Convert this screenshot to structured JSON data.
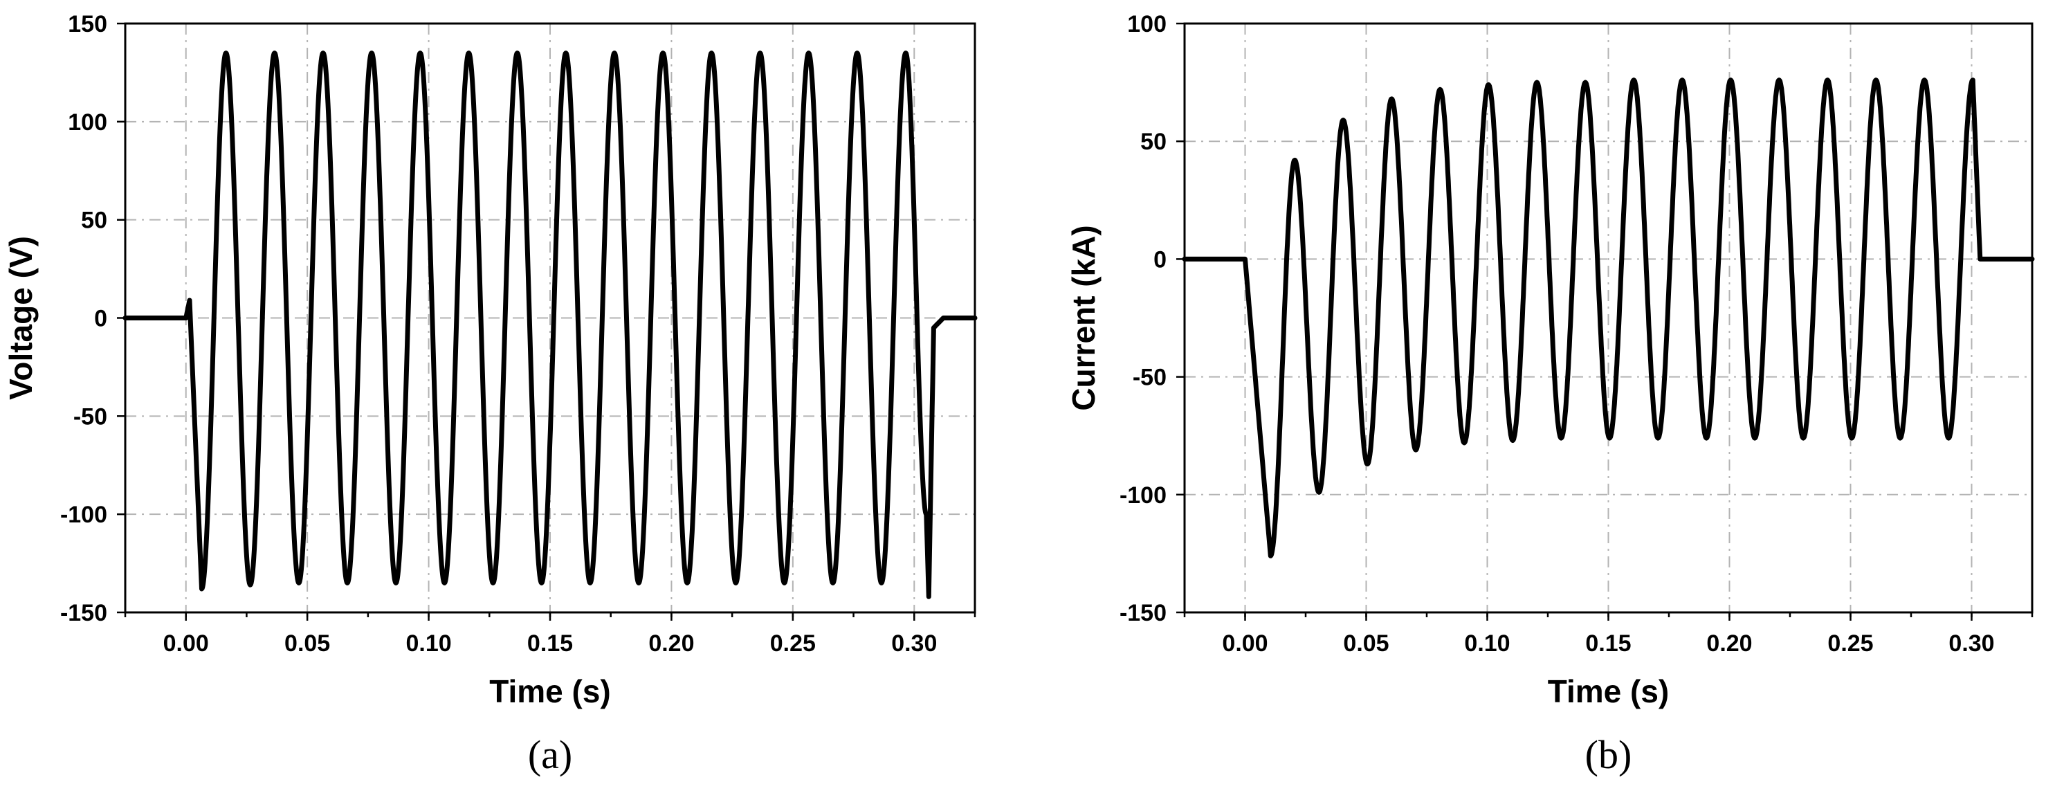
{
  "chart_data": [
    {
      "type": "line",
      "panel": "(a)",
      "xlabel": "Time (s)",
      "ylabel": "Voltage (V)",
      "xlim": [
        -0.025,
        0.325
      ],
      "ylim": [
        -150,
        150
      ],
      "xticks": [
        "0.00",
        "0.05",
        "0.10",
        "0.15",
        "0.20",
        "0.25",
        "0.30"
      ],
      "yticks": [
        "150",
        "100",
        "50",
        "0",
        "-50",
        "-100",
        "-150"
      ],
      "xtick_values": [
        0,
        0.05,
        0.1,
        0.15,
        0.2,
        0.25,
        0.3
      ],
      "ytick_values": [
        150,
        100,
        50,
        0,
        -50,
        -100,
        -150
      ],
      "grid": true,
      "series": [
        {
          "description": "sinusoidal voltage, 50 Hz, amplitude approx. 135 V, energized from t = 0.0015 s to t = 0.305 s",
          "x": [
            -0.025,
            0.0,
            0.0015,
            0.0065,
            0.0165,
            0.0265,
            0.0365,
            0.0465,
            0.0565,
            0.0665,
            0.0765,
            0.0865,
            0.0965,
            0.1065,
            0.1165,
            0.1265,
            0.1365,
            0.1465,
            0.1565,
            0.1665,
            0.1765,
            0.1865,
            0.1965,
            0.2065,
            0.2165,
            0.2265,
            0.2365,
            0.2465,
            0.2565,
            0.2665,
            0.2765,
            0.2865,
            0.2965,
            0.305,
            0.306,
            0.308,
            0.312,
            0.325
          ],
          "y": [
            0,
            0,
            9,
            -138,
            135,
            -136,
            135,
            -135,
            135,
            -135,
            135,
            -135,
            135,
            -135,
            135,
            -135,
            135,
            -135,
            135,
            -135,
            135,
            -135,
            135,
            -135,
            135,
            -135,
            135,
            -135,
            135,
            -135,
            135,
            -135,
            135,
            -100,
            -142,
            -5,
            0,
            0
          ]
        }
      ]
    },
    {
      "type": "line",
      "panel": "(b)",
      "xlabel": "Time (s)",
      "ylabel": "Current (kA)",
      "xlim": [
        -0.025,
        0.325
      ],
      "ylim": [
        -150,
        100
      ],
      "xticks": [
        "0.00",
        "0.05",
        "0.10",
        "0.15",
        "0.20",
        "0.25",
        "0.30"
      ],
      "yticks": [
        "100",
        "50",
        "0",
        "-50",
        "-100",
        "-150"
      ],
      "xtick_values": [
        0,
        0.05,
        0.1,
        0.15,
        0.2,
        0.25,
        0.3
      ],
      "ytick_values": [
        100,
        50,
        0,
        -50,
        -100,
        -150
      ],
      "grid": true,
      "series": [
        {
          "description": "fault current with decaying DC offset, 50 Hz, steady amplitude approx. 76 kA, from t = 0 s to t = 0.30 s",
          "x": [
            -0.025,
            0.0,
            0.0105,
            0.0205,
            0.0305,
            0.0405,
            0.0505,
            0.0605,
            0.0705,
            0.0805,
            0.0905,
            0.1005,
            0.1105,
            0.1205,
            0.1305,
            0.1405,
            0.1505,
            0.1605,
            0.1705,
            0.1805,
            0.1905,
            0.2005,
            0.2105,
            0.2205,
            0.2305,
            0.2405,
            0.2505,
            0.2605,
            0.2705,
            0.2805,
            0.2905,
            0.3005,
            0.3035,
            0.325
          ],
          "y": [
            0,
            0,
            -126,
            42,
            -99,
            59,
            -87,
            68,
            -81,
            72,
            -78,
            74,
            -77,
            75,
            -76,
            75,
            -76,
            76,
            -76,
            76,
            -76,
            76,
            -76,
            76,
            -76,
            76,
            -76,
            76,
            -76,
            76,
            -76,
            76,
            0,
            0
          ]
        }
      ]
    }
  ]
}
